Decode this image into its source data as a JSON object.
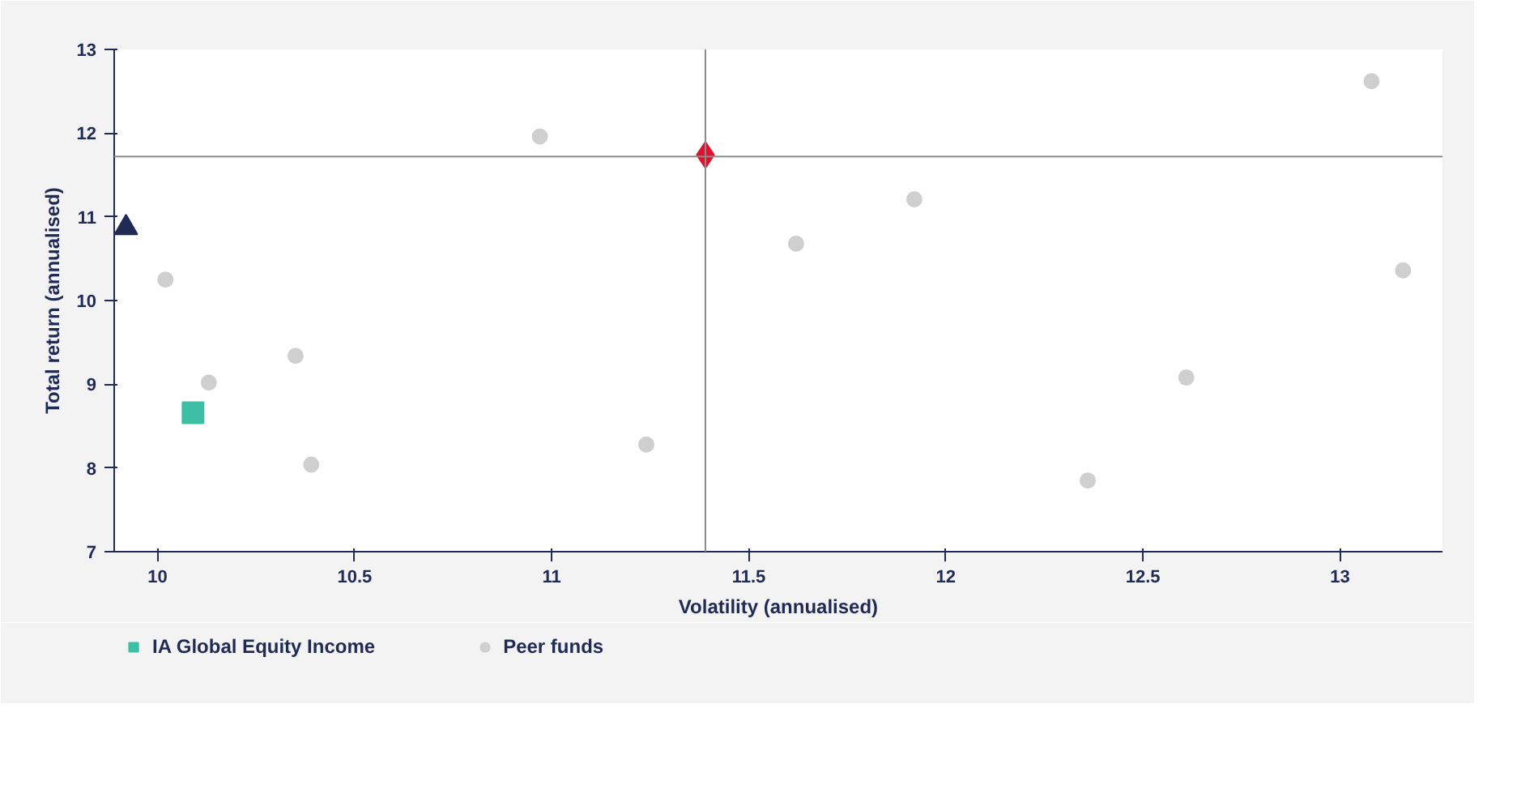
{
  "chart_data": {
    "type": "scatter",
    "xlabel": "Volatility (annualised)",
    "ylabel": "Total return (annualised)",
    "xlim": [
      9.89,
      13.26
    ],
    "ylim": [
      7,
      13
    ],
    "xticks": [
      10,
      10.5,
      11,
      11.5,
      12,
      12.5,
      13
    ],
    "yticks": [
      7,
      8,
      9,
      10,
      11,
      12,
      13
    ],
    "grid": false,
    "legend": "bottom",
    "ref_lines": [
      {
        "axis": "x",
        "value": 11.39,
        "color": "#8c8c8c"
      },
      {
        "axis": "y",
        "value": 11.72,
        "color": "#8c8c8c"
      }
    ],
    "series": [
      {
        "color": "#1f2a55",
        "marker": "triangle",
        "x": [
          9.92
        ],
        "values": [
          10.87
        ]
      },
      {
        "name": "IA Global Equity Income",
        "color": "#3dbfa5",
        "marker": "square",
        "x": [
          10.09
        ],
        "values": [
          8.66
        ]
      },
      {
        "color": "#e0102f",
        "marker": "diamond",
        "x": [
          11.39
        ],
        "values": [
          11.74
        ]
      },
      {
        "name": "Peer funds",
        "color": "#cfcfcf",
        "marker": "circle",
        "x": [
          10.02,
          10.13,
          10.35,
          10.39,
          10.97,
          11.24,
          11.62,
          11.92,
          12.36,
          12.61,
          13.08,
          13.16
        ],
        "values": [
          10.25,
          9.02,
          9.34,
          8.04,
          11.96,
          8.28,
          10.68,
          11.21,
          7.85,
          9.08,
          12.62,
          10.36
        ]
      }
    ]
  }
}
